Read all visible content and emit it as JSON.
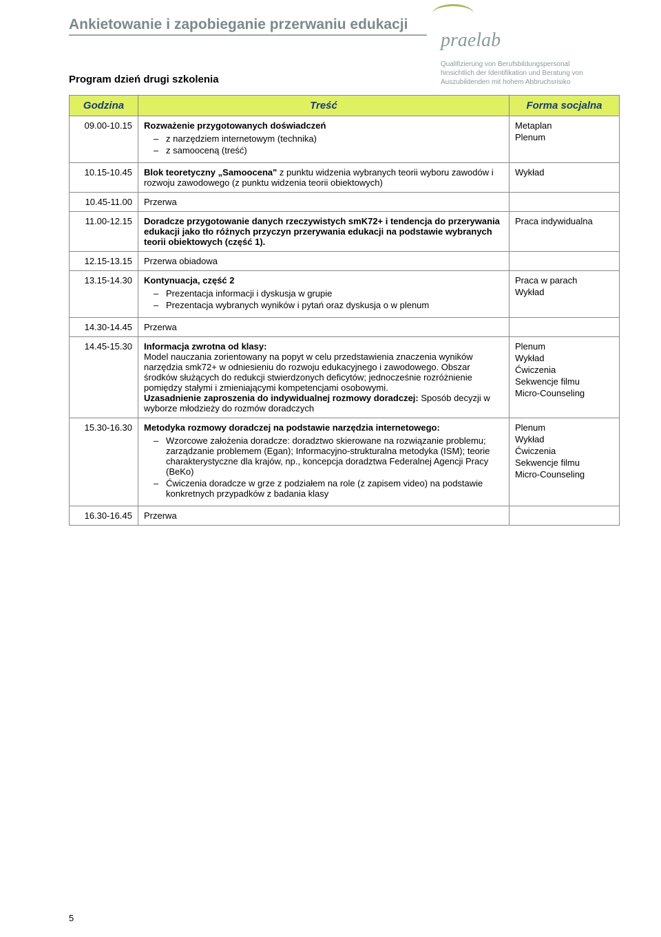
{
  "doc_title": "Ankietowanie i zapobieganie przerwaniu edukacji",
  "logo_text": "praelab",
  "logo_subtitle": [
    "Qualifizierung von Berufsbildungspersonal",
    "hinsichtlich der Identifikation und Beratung von",
    "Auszubildenden mit hohem Abbruchsrisiko"
  ],
  "program_heading": "Program dzień drugi szkolenia",
  "header_colors": {
    "bg": "#dff060",
    "fg": "#1a3a7a"
  },
  "columns": {
    "time": "Godzina",
    "content": "Treść",
    "form": "Forma socjalna"
  },
  "rows": [
    {
      "time": "09.00-10.15",
      "content_bold": "Rozważenie przygotowanych doświadczeń",
      "bullets": [
        "z narzędziem internetowym (technika)",
        "z samooceną (treść)"
      ],
      "form": [
        "Metaplan",
        "Plenum"
      ]
    },
    {
      "time": "10.15-10.45",
      "content_bold_inline": "Blok teoretyczny „Samoocena\"",
      "content_after": " z punktu widzenia wybranych teorii wyboru zawodów i rozwoju zawodowego (z punktu widzenia teorii obiektowych)",
      "form": [
        "Wykład"
      ]
    },
    {
      "time": "10.45-11.00",
      "content_plain": "Przerwa",
      "form": []
    },
    {
      "time": "11.00-12.15",
      "content_bold": "Doradcze przygotowanie danych rzeczywistych smK72+ i tendencja do przerywania edukacji jako tło różnych przyczyn przerywania edukacji na podstawie wybranych teorii obiektowych (część 1).",
      "form": [
        "Praca indywidualna"
      ]
    },
    {
      "time": "12.15-13.15",
      "content_plain": "Przerwa obiadowa",
      "form": []
    },
    {
      "time": "13.15-14.30",
      "content_bold": "Kontynuacja, część 2",
      "bullets": [
        "Prezentacja informacji i dyskusja w grupie",
        "Prezentacja wybranych wyników i pytań oraz dyskusja o w plenum"
      ],
      "form": [
        "Praca w parach",
        "Wykład"
      ]
    },
    {
      "time": "14.30-14.45",
      "content_plain": "Przerwa",
      "form": []
    },
    {
      "time": "14.45-15.30",
      "content_bold_inline": "Informacja zwrotna od klasy:",
      "content_para": "Model nauczania zorientowany na popyt w celu przedstawienia znaczenia wyników narzędzia smk72+ w odniesieniu do rozwoju edukacyjnego i zawodowego. Obszar środków służących do redukcji stwierdzonych deficytów; jednocześnie rozróżnienie pomiędzy stałymi i zmieniającymi kompetencjami osobowymi.",
      "content_bold2": "Uzasadnienie zaproszenia do indywidualnej rozmowy doradczej:",
      "content_after2": " Sposób decyzji w wyborze młodzieży do rozmów doradczych",
      "form": [
        "Plenum",
        "Wykład",
        "Ćwiczenia",
        "Sekwencje filmu",
        "Micro-Counseling"
      ]
    },
    {
      "time": "15.30-16.30",
      "content_bold_inline": "Metodyka rozmowy doradczej na podstawie narzędzia internetowego:",
      "justify_bold": true,
      "bullets": [
        "Wzorcowe założenia doradcze: doradztwo skierowane na rozwiązanie problemu; zarządzanie problemem (Egan); Informacyjno-strukturalna metodyka (ISM); teorie charakterystyczne dla krajów, np., koncepcja doradztwa Federalnej Agencji Pracy (BeKo)",
        "Ćwiczenia doradcze w grze z podziałem na role (z zapisem video) na podstawie konkretnych przypadków z badania klasy"
      ],
      "form": [
        "Plenum",
        "Wykład",
        "Ćwiczenia",
        "Sekwencje filmu",
        "Micro-Counseling"
      ]
    },
    {
      "time": "16.30-16.45",
      "content_plain": "Przerwa",
      "form": []
    }
  ],
  "page_number": "5"
}
